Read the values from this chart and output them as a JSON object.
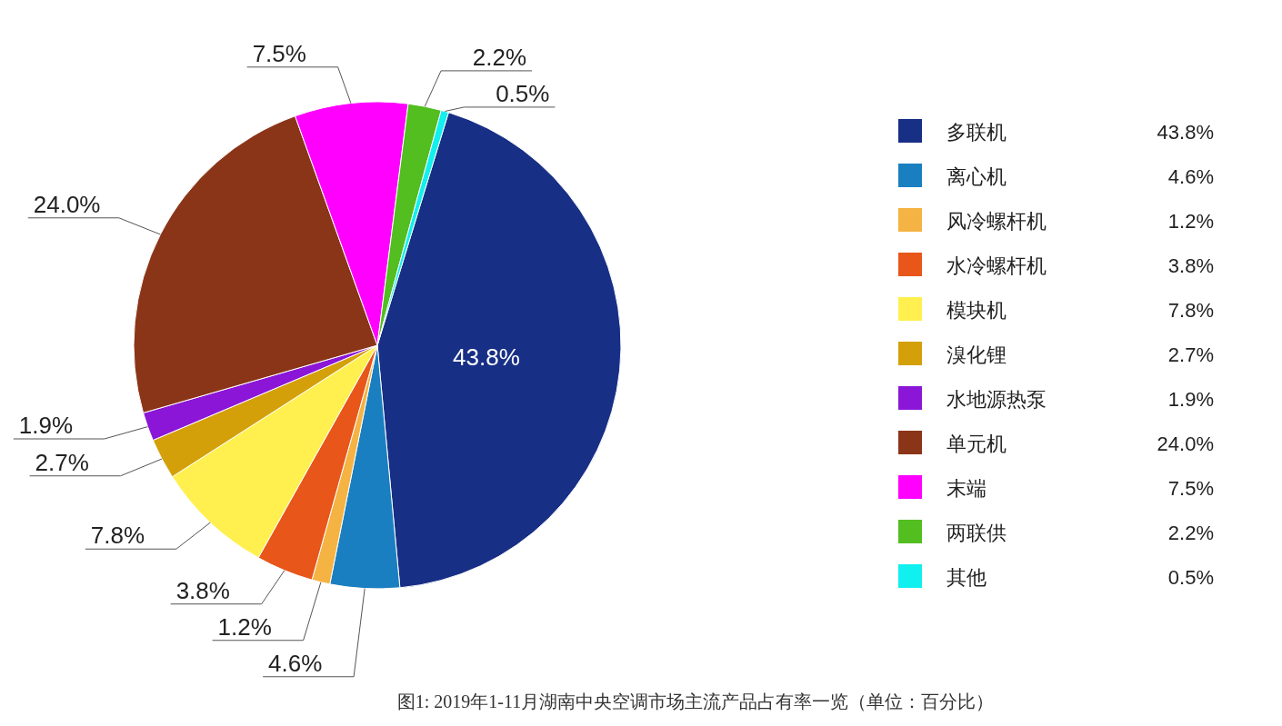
{
  "chart_data": {
    "type": "pie",
    "title": "图1: 2019年1-11月湖南中央空调市场主流产品占有率一览（单位：百分比）",
    "categories": [
      "多联机",
      "离心机",
      "风冷螺杆机",
      "水冷螺杆机",
      "模块机",
      "溴化锂",
      "水地源热泵",
      "单元机",
      "末端",
      "两联供",
      "其他"
    ],
    "values": [
      43.8,
      4.6,
      1.2,
      3.8,
      7.8,
      2.7,
      1.9,
      24.0,
      7.5,
      2.2,
      0.5
    ],
    "value_labels": [
      "43.8%",
      "4.6%",
      "1.2%",
      "3.8%",
      "7.8%",
      "2.7%",
      "1.9%",
      "24.0%",
      "7.5%",
      "2.2%",
      "0.5%"
    ],
    "colors": [
      "#182f86",
      "#1a7fc1",
      "#f4b342",
      "#e8561a",
      "#fff04f",
      "#d4a00a",
      "#8b16d8",
      "#8b3518",
      "#ff00ff",
      "#52be20",
      "#10f0ee"
    ],
    "legend": "right"
  }
}
